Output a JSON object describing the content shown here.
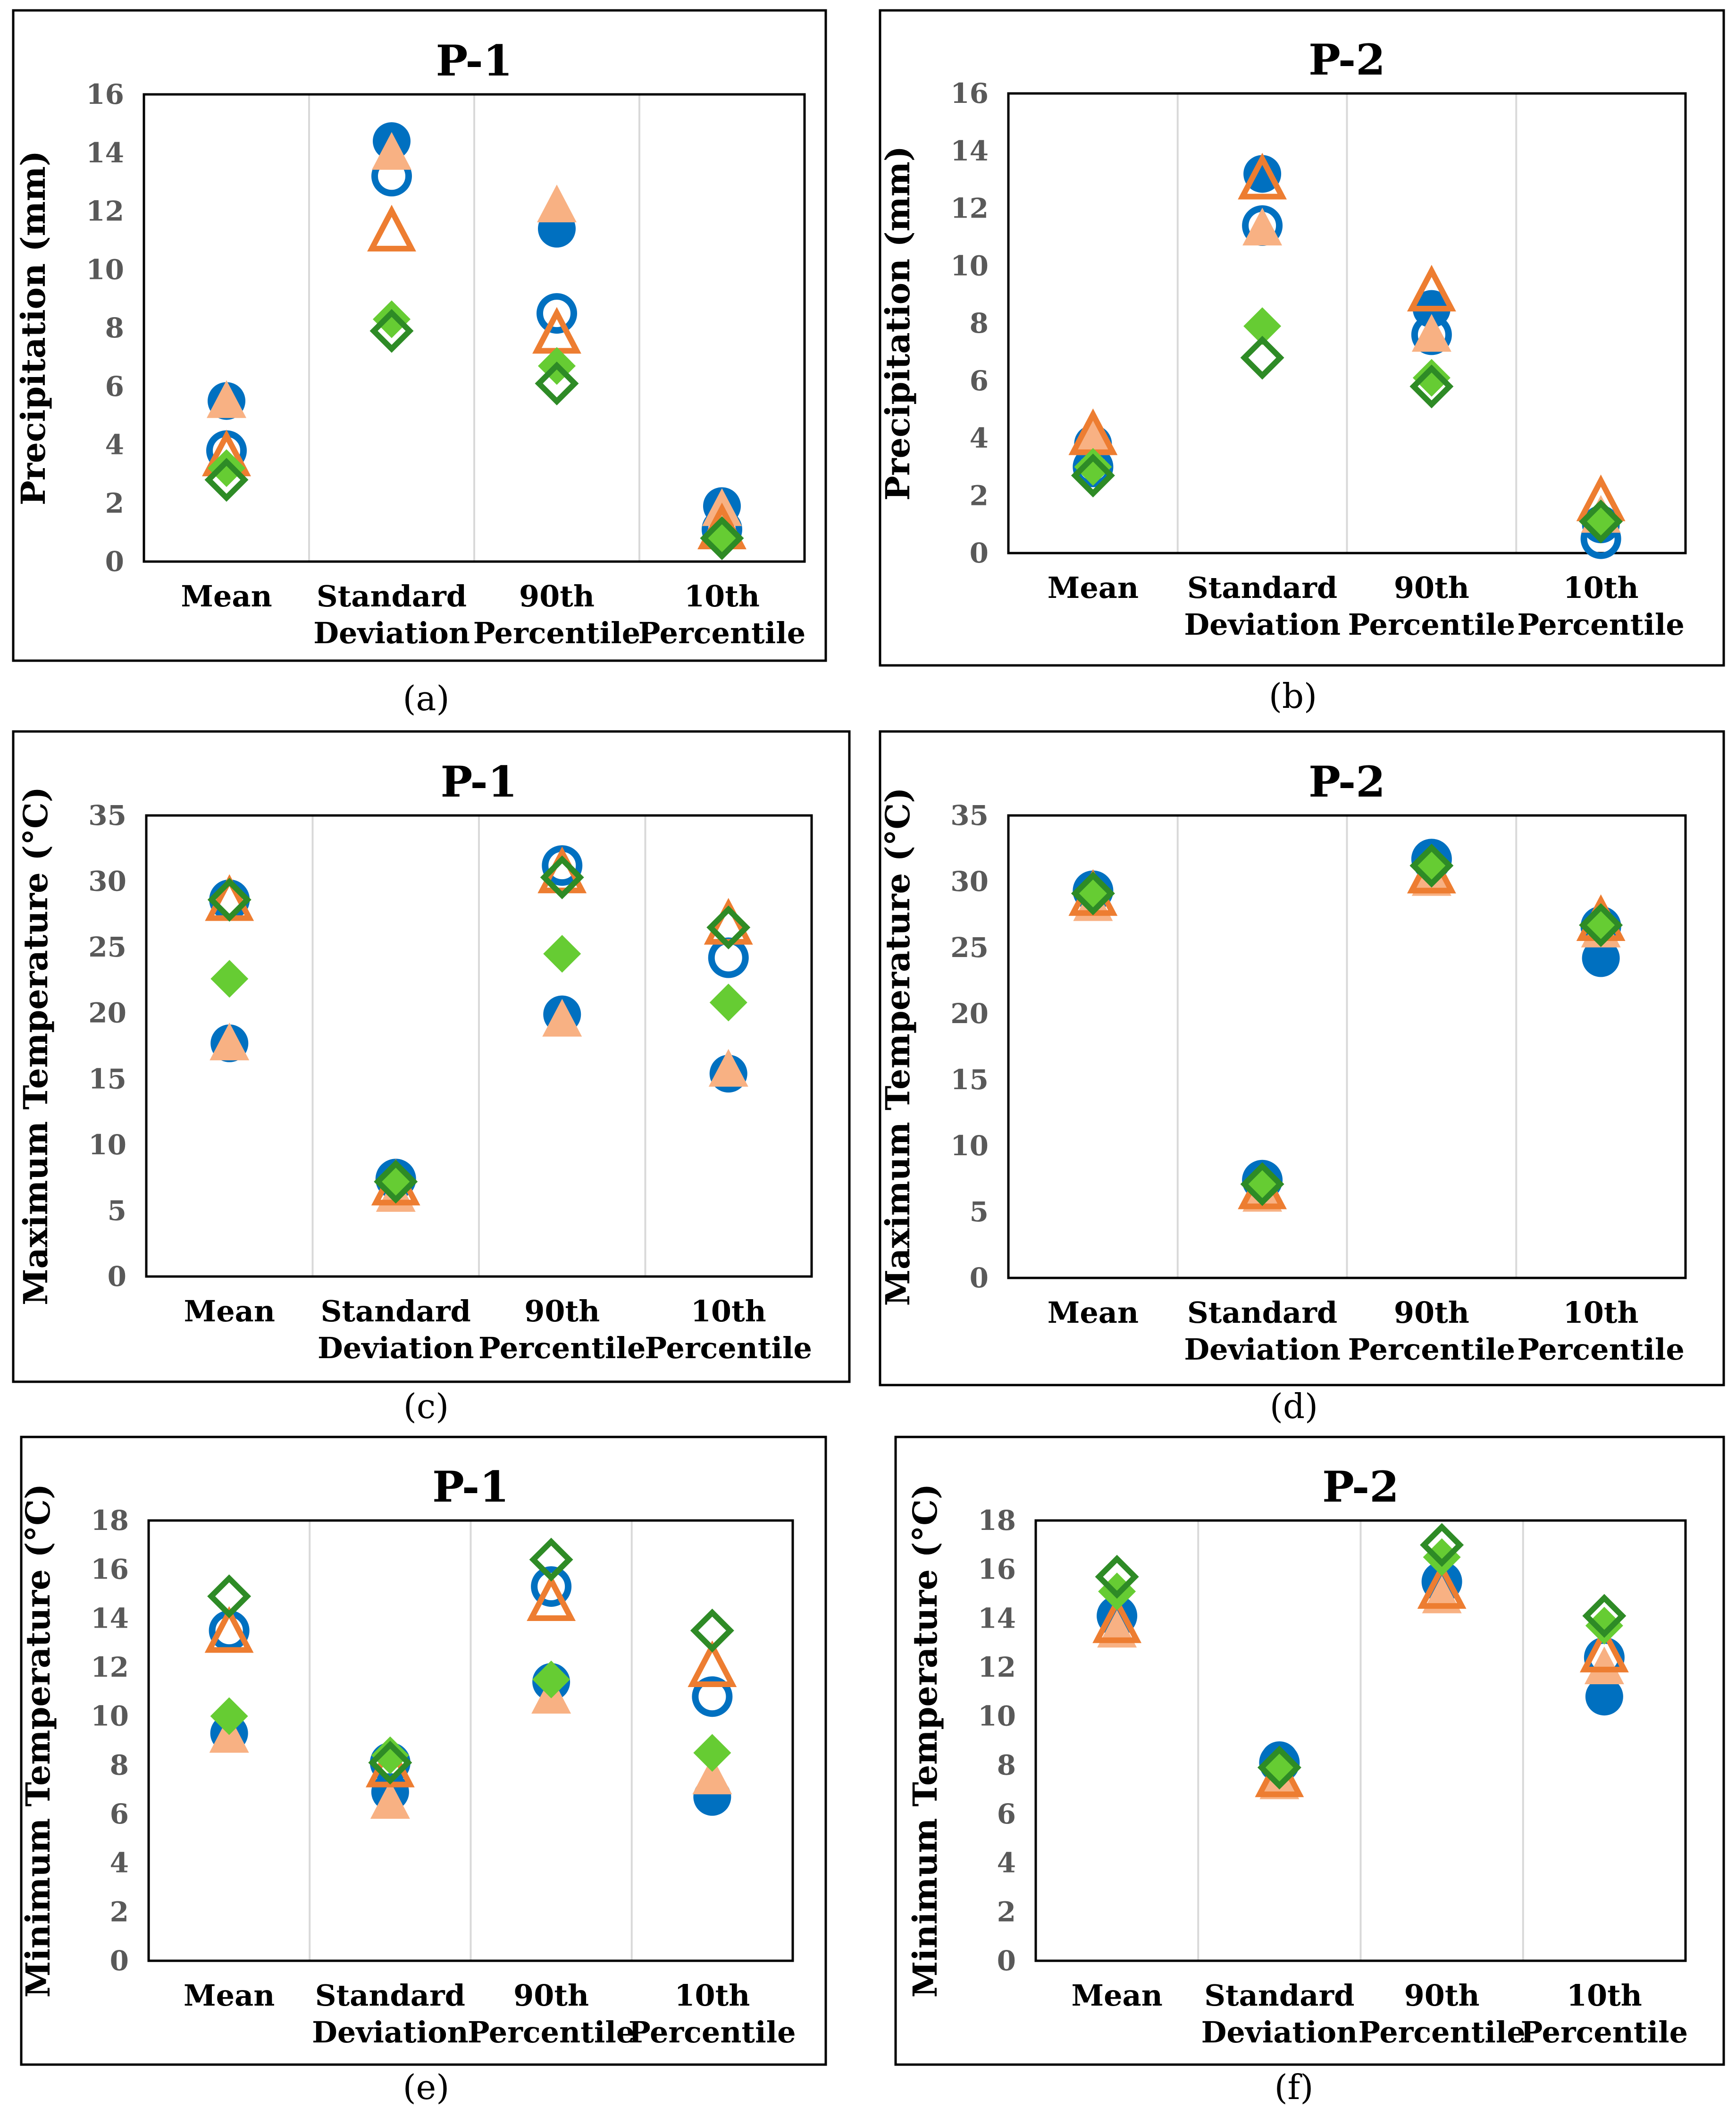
{
  "colors": {
    "blue": "#0070C0",
    "orange": "#ED7D31",
    "peach": "#F8B183",
    "green": "#66CC33",
    "darkgreen": "#2E8B26",
    "gridline": "#D9D9D9",
    "frame": "#000000",
    "tick_text": "#595959"
  },
  "chart_data": [
    {
      "id": "a",
      "type": "scatter",
      "caption": "(a)",
      "title": "P-1",
      "ylabel": "Precipitation (mm)",
      "xlabel": "",
      "categories": [
        [
          "Mean"
        ],
        [
          "Standard",
          "Deviation"
        ],
        [
          "90th",
          "Percentile"
        ],
        [
          "10th",
          "Percentile"
        ]
      ],
      "ylim": [
        0,
        16
      ],
      "yticks": [
        0,
        2,
        4,
        6,
        8,
        10,
        12,
        14,
        16
      ],
      "grid": "vertical",
      "series": [
        {
          "name": "s1",
          "marker": "circle",
          "filled": true,
          "color": "blue",
          "values": [
            5.5,
            14.4,
            11.4,
            1.9
          ]
        },
        {
          "name": "s2",
          "marker": "circle",
          "filled": false,
          "color": "blue",
          "values": [
            3.8,
            13.2,
            8.5,
            1.1
          ]
        },
        {
          "name": "s3",
          "marker": "triangle",
          "filled": true,
          "color": "peach",
          "values": [
            5.5,
            14.0,
            12.2,
            1.8
          ]
        },
        {
          "name": "s4",
          "marker": "triangle",
          "filled": false,
          "color": "orange",
          "values": [
            3.6,
            11.3,
            7.8,
            1.1
          ]
        },
        {
          "name": "s5",
          "marker": "diamond",
          "filled": true,
          "color": "green",
          "values": [
            3.2,
            8.3,
            6.7,
            0.8
          ]
        },
        {
          "name": "s6",
          "marker": "diamond",
          "filled": false,
          "color": "darkgreen",
          "values": [
            2.8,
            7.9,
            6.1,
            0.8
          ]
        }
      ]
    },
    {
      "id": "b",
      "type": "scatter",
      "caption": "(b)",
      "title": "P-2",
      "ylabel": "Precipitation (mm)",
      "xlabel": "",
      "categories": [
        [
          "Mean"
        ],
        [
          "Standard",
          "Deviation"
        ],
        [
          "90th",
          "Percentile"
        ],
        [
          "10th",
          "Percentile"
        ]
      ],
      "ylim": [
        0,
        16
      ],
      "yticks": [
        0,
        2,
        4,
        6,
        8,
        10,
        12,
        14,
        16
      ],
      "grid": "vertical",
      "series": [
        {
          "name": "s1",
          "marker": "circle",
          "filled": true,
          "color": "blue",
          "values": [
            3.8,
            13.2,
            8.5,
            1.0
          ]
        },
        {
          "name": "s2",
          "marker": "circle",
          "filled": false,
          "color": "blue",
          "values": [
            3.0,
            11.4,
            7.6,
            0.5
          ]
        },
        {
          "name": "s3",
          "marker": "triangle",
          "filled": true,
          "color": "peach",
          "values": [
            4.0,
            11.3,
            7.6,
            1.3
          ]
        },
        {
          "name": "s4",
          "marker": "triangle",
          "filled": false,
          "color": "orange",
          "values": [
            4.1,
            13.0,
            9.1,
            1.8
          ]
        },
        {
          "name": "s5",
          "marker": "diamond",
          "filled": true,
          "color": "green",
          "values": [
            3.0,
            7.9,
            6.1,
            1.2
          ]
        },
        {
          "name": "s6",
          "marker": "diamond",
          "filled": false,
          "color": "darkgreen",
          "values": [
            2.7,
            6.8,
            5.8,
            1.1
          ]
        }
      ]
    },
    {
      "id": "c",
      "type": "scatter",
      "caption": "(c)",
      "title": "P-1",
      "ylabel": "Maximum Temperature (°C)",
      "xlabel": "",
      "categories": [
        [
          "Mean"
        ],
        [
          "Standard",
          "Deviation"
        ],
        [
          "90th",
          "Percentile"
        ],
        [
          "10th",
          "Percentile"
        ]
      ],
      "ylim": [
        0,
        35
      ],
      "yticks": [
        0,
        5,
        10,
        15,
        20,
        25,
        30,
        35
      ],
      "grid": "vertical",
      "series": [
        {
          "name": "s1",
          "marker": "circle",
          "filled": true,
          "color": "blue",
          "values": [
            17.7,
            7.4,
            19.9,
            15.4
          ]
        },
        {
          "name": "s2",
          "marker": "circle",
          "filled": false,
          "color": "blue",
          "values": [
            28.6,
            7.4,
            31.2,
            24.2
          ]
        },
        {
          "name": "s3",
          "marker": "triangle",
          "filled": true,
          "color": "peach",
          "values": [
            17.7,
            6.2,
            19.5,
            15.7
          ]
        },
        {
          "name": "s4",
          "marker": "triangle",
          "filled": false,
          "color": "orange",
          "values": [
            28.5,
            6.9,
            30.6,
            26.7
          ]
        },
        {
          "name": "s5",
          "marker": "diamond",
          "filled": true,
          "color": "green",
          "values": [
            22.6,
            7.0,
            24.5,
            20.8
          ]
        },
        {
          "name": "s6",
          "marker": "diamond",
          "filled": false,
          "color": "darkgreen",
          "values": [
            28.6,
            7.2,
            30.3,
            26.5
          ]
        }
      ]
    },
    {
      "id": "d",
      "type": "scatter",
      "caption": "(d)",
      "title": "P-2",
      "ylabel": "Maximum Temperature (°C)",
      "xlabel": "",
      "categories": [
        [
          "Mean"
        ],
        [
          "Standard",
          "Deviation"
        ],
        [
          "90th",
          "Percentile"
        ],
        [
          "10th",
          "Percentile"
        ]
      ],
      "ylim": [
        0,
        35
      ],
      "yticks": [
        0,
        5,
        10,
        15,
        20,
        25,
        30,
        35
      ],
      "grid": "vertical",
      "series": [
        {
          "name": "s1",
          "marker": "circle",
          "filled": true,
          "color": "blue",
          "values": [
            29.2,
            7.4,
            31.5,
            24.2
          ]
        },
        {
          "name": "s2",
          "marker": "circle",
          "filled": false,
          "color": "blue",
          "values": [
            29.3,
            7.4,
            31.7,
            26.6
          ]
        },
        {
          "name": "s3",
          "marker": "triangle",
          "filled": true,
          "color": "peach",
          "values": [
            28.3,
            6.3,
            30.2,
            26.3
          ]
        },
        {
          "name": "s4",
          "marker": "triangle",
          "filled": false,
          "color": "orange",
          "values": [
            28.9,
            6.7,
            30.6,
            27.0
          ]
        },
        {
          "name": "s5",
          "marker": "diamond",
          "filled": true,
          "color": "green",
          "values": [
            29.0,
            7.0,
            31.0,
            26.5
          ]
        },
        {
          "name": "s6",
          "marker": "diamond",
          "filled": false,
          "color": "darkgreen",
          "values": [
            29.1,
            7.1,
            31.2,
            26.7
          ]
        }
      ]
    },
    {
      "id": "e",
      "type": "scatter",
      "caption": "(e)",
      "title": "P-1",
      "ylabel": "Minimum Temperature (°C)",
      "xlabel": "",
      "categories": [
        [
          "Mean"
        ],
        [
          "Standard",
          "Deviation"
        ],
        [
          "90th",
          "Percentile"
        ],
        [
          "10th",
          "Percentile"
        ]
      ],
      "ylim": [
        0,
        18
      ],
      "yticks": [
        0,
        2,
        4,
        6,
        8,
        10,
        12,
        14,
        16,
        18
      ],
      "grid": "vertical",
      "series": [
        {
          "name": "s1",
          "marker": "circle",
          "filled": true,
          "color": "blue",
          "values": [
            9.3,
            6.9,
            11.4,
            6.7
          ]
        },
        {
          "name": "s2",
          "marker": "circle",
          "filled": false,
          "color": "blue",
          "values": [
            13.5,
            8.1,
            15.3,
            10.8
          ]
        },
        {
          "name": "s3",
          "marker": "triangle",
          "filled": true,
          "color": "peach",
          "values": [
            9.2,
            6.5,
            10.8,
            7.5
          ]
        },
        {
          "name": "s4",
          "marker": "triangle",
          "filled": false,
          "color": "orange",
          "values": [
            13.4,
            7.9,
            14.7,
            12.0
          ]
        },
        {
          "name": "s5",
          "marker": "diamond",
          "filled": true,
          "color": "green",
          "values": [
            10.0,
            8.4,
            11.5,
            8.5
          ]
        },
        {
          "name": "s6",
          "marker": "diamond",
          "filled": false,
          "color": "darkgreen",
          "values": [
            14.9,
            8.1,
            16.4,
            13.5
          ]
        }
      ]
    },
    {
      "id": "f",
      "type": "scatter",
      "caption": "(f)",
      "title": "P-2",
      "ylabel": "Minimum Temperature (°C)",
      "xlabel": "",
      "categories": [
        [
          "Mean"
        ],
        [
          "Standard",
          "Deviation"
        ],
        [
          "90th",
          "Percentile"
        ],
        [
          "10th",
          "Percentile"
        ]
      ],
      "ylim": [
        0,
        18
      ],
      "yticks": [
        0,
        2,
        4,
        6,
        8,
        10,
        12,
        14,
        16,
        18
      ],
      "grid": "vertical",
      "series": [
        {
          "name": "s1",
          "marker": "circle",
          "filled": true,
          "color": "blue",
          "values": [
            14.0,
            8.2,
            15.4,
            10.8
          ]
        },
        {
          "name": "s2",
          "marker": "circle",
          "filled": false,
          "color": "blue",
          "values": [
            14.1,
            8.1,
            15.5,
            12.4
          ]
        },
        {
          "name": "s3",
          "marker": "triangle",
          "filled": true,
          "color": "peach",
          "values": [
            13.5,
            7.3,
            14.9,
            12.0
          ]
        },
        {
          "name": "s4",
          "marker": "triangle",
          "filled": false,
          "color": "orange",
          "values": [
            13.8,
            7.5,
            15.2,
            12.6
          ]
        },
        {
          "name": "s5",
          "marker": "diamond",
          "filled": true,
          "color": "green",
          "values": [
            15.1,
            7.8,
            16.5,
            13.7
          ]
        },
        {
          "name": "s6",
          "marker": "diamond",
          "filled": false,
          "color": "darkgreen",
          "values": [
            15.7,
            7.9,
            17.0,
            14.1
          ]
        }
      ]
    }
  ]
}
